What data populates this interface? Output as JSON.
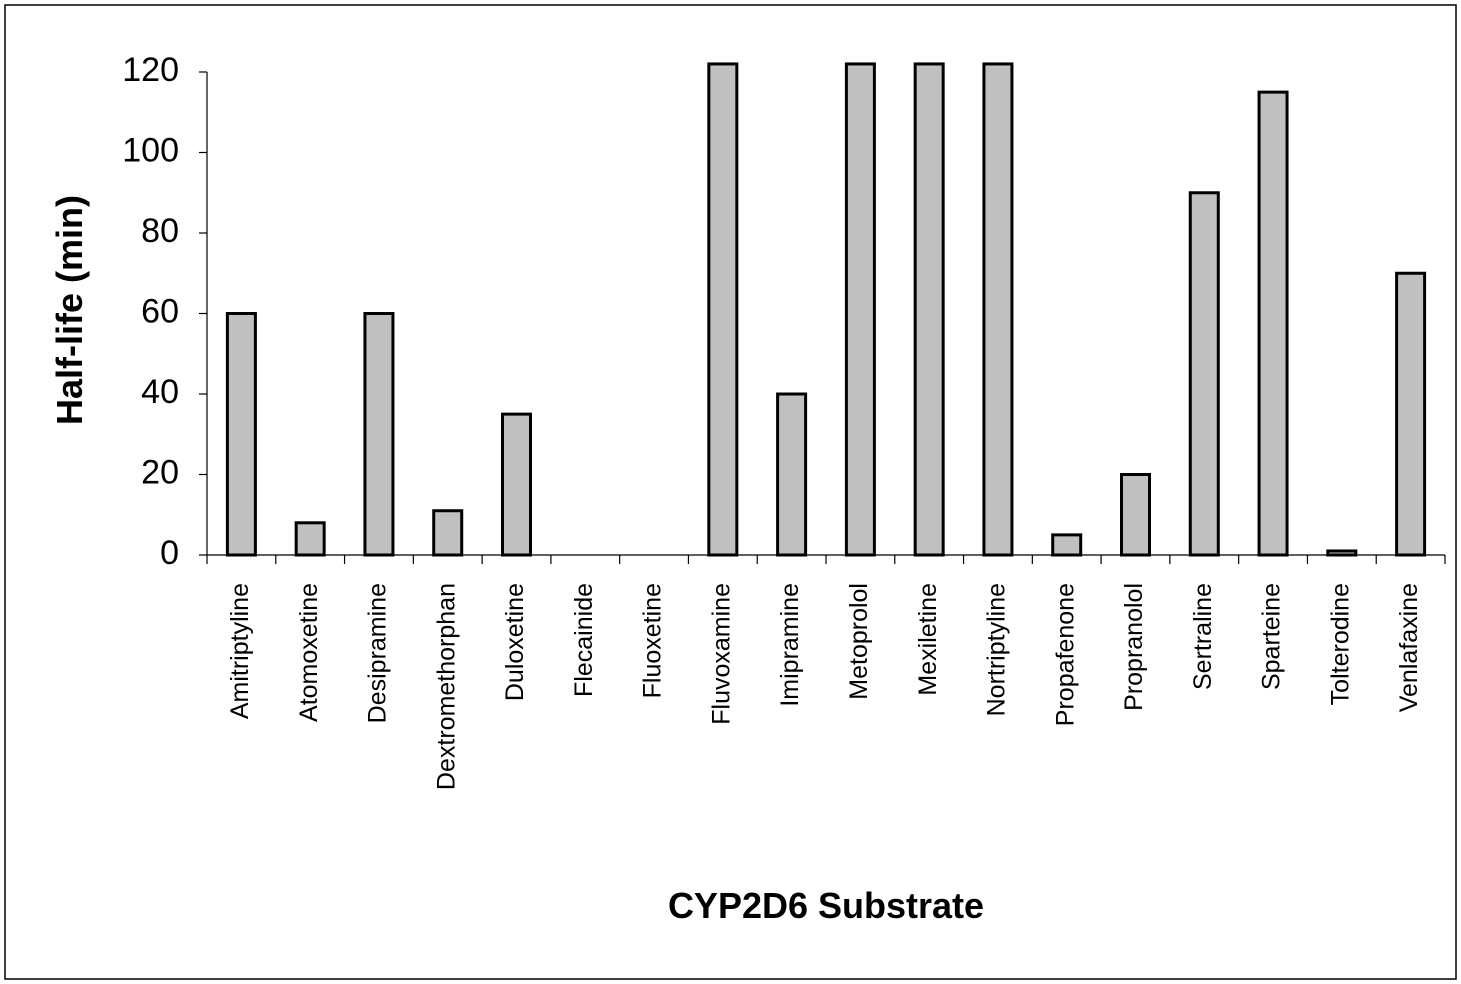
{
  "chart_data": {
    "type": "bar",
    "x_label": "CYP2D6 Substrate",
    "y_label": "Half-life (min)",
    "categories": [
      "Amitriptyline",
      "Atomoxetine",
      "Desipramine",
      "Dextromethorphan",
      "Duloxetine",
      "Flecainide",
      "Fluoxetine",
      "Fluvoxamine",
      "Imipramine",
      "Metoprolol",
      "Mexiletine",
      "Nortriptyline",
      "Propafenone",
      "Propranolol",
      "Sertraline",
      "Sparteine",
      "Tolterodine",
      "Venlafaxine"
    ],
    "values": [
      60,
      8,
      60,
      11,
      35,
      0,
      0,
      122,
      40,
      122,
      122,
      122,
      5,
      20,
      90,
      115,
      1,
      70
    ],
    "color": "#c0c0c0",
    "ylim": [
      0,
      120
    ],
    "yticks": [
      0,
      20,
      40,
      60,
      80,
      100,
      120
    ],
    "grid": false
  }
}
